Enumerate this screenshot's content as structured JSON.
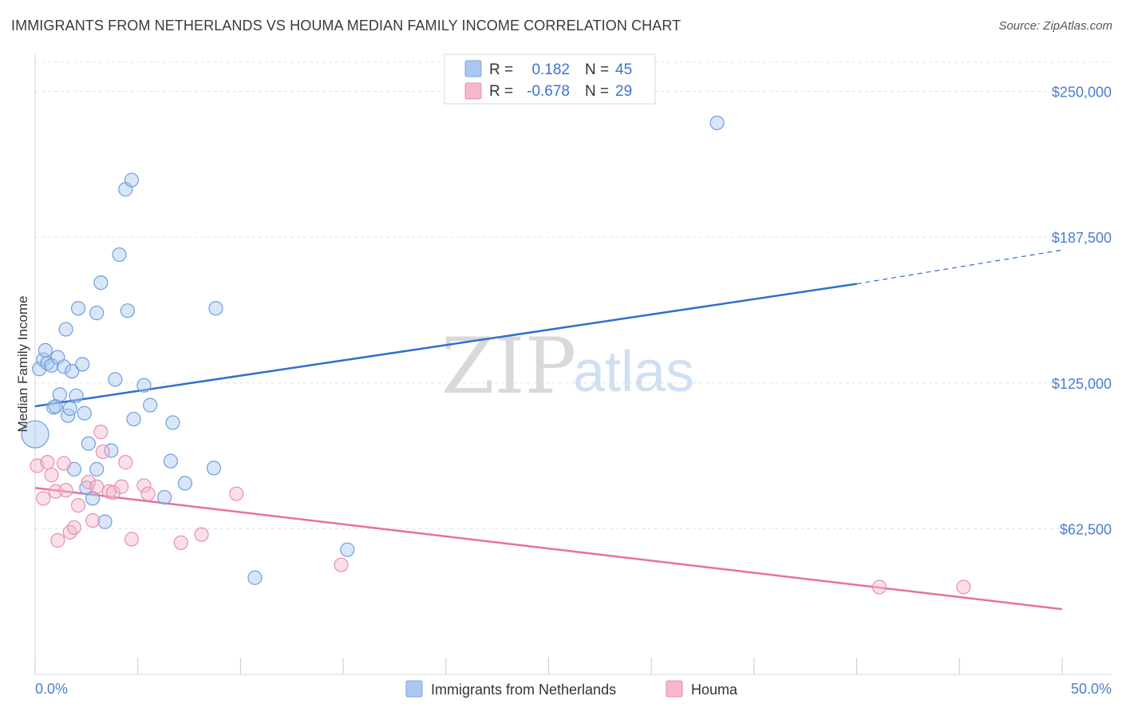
{
  "header": {
    "title": "IMMIGRANTS FROM NETHERLANDS VS HOUMA MEDIAN FAMILY INCOME CORRELATION CHART",
    "source": "Source: ZipAtlas.com"
  },
  "watermark": {
    "zip": "ZIP",
    "atlas": "atlas"
  },
  "legend": {
    "rows": [
      {
        "r_label": "R =",
        "r_value": "0.182",
        "n_label": "N =",
        "n_value": "45",
        "color": "#a9c8ef"
      },
      {
        "r_label": "R =",
        "r_value": "-0.678",
        "n_label": "N =",
        "n_value": "29",
        "color": "#f5b8cb"
      }
    ]
  },
  "colors": {
    "blue_fill": "#a9c8ef",
    "blue_line": "#2f6fd1",
    "pink_fill": "#f5b8cb",
    "pink_line": "#e8719a",
    "grid": "#dde3ea"
  },
  "chart_data": {
    "type": "scatter",
    "title": "IMMIGRANTS FROM NETHERLANDS VS HOUMA MEDIAN FAMILY INCOME CORRELATION CHART",
    "xlabel": "",
    "ylabel": "Median Family Income",
    "xlim": [
      0,
      50
    ],
    "ylim": [
      0,
      262500
    ],
    "x_tick_labels": [
      "0.0%",
      "50.0%"
    ],
    "y_ticks": [
      62500,
      125000,
      187500,
      250000
    ],
    "y_tick_labels": [
      "$62,500",
      "$125,000",
      "$187,500",
      "$250,000"
    ],
    "series": [
      {
        "name": "Immigrants from Netherlands",
        "color": "#a9c8ef",
        "trend": {
          "x0": 0,
          "y0": 115000,
          "x1": 40,
          "y1": 167500,
          "x_dash_end": 50,
          "y_dash_end": 182000
        },
        "points": [
          {
            "x": 0.0,
            "y": 103000,
            "big": true
          },
          {
            "x": 0.2,
            "y": 131000
          },
          {
            "x": 0.4,
            "y": 135000
          },
          {
            "x": 0.5,
            "y": 139000
          },
          {
            "x": 0.6,
            "y": 133500
          },
          {
            "x": 0.8,
            "y": 132500
          },
          {
            "x": 0.9,
            "y": 114500
          },
          {
            "x": 1.0,
            "y": 115000
          },
          {
            "x": 1.1,
            "y": 136000
          },
          {
            "x": 1.2,
            "y": 120000
          },
          {
            "x": 1.4,
            "y": 132000
          },
          {
            "x": 1.5,
            "y": 148000
          },
          {
            "x": 1.6,
            "y": 111000
          },
          {
            "x": 1.7,
            "y": 114000
          },
          {
            "x": 1.8,
            "y": 130000
          },
          {
            "x": 1.9,
            "y": 88000
          },
          {
            "x": 2.0,
            "y": 119500
          },
          {
            "x": 2.1,
            "y": 157000
          },
          {
            "x": 2.3,
            "y": 133000
          },
          {
            "x": 2.4,
            "y": 112000
          },
          {
            "x": 2.5,
            "y": 80000
          },
          {
            "x": 2.6,
            "y": 99000
          },
          {
            "x": 2.8,
            "y": 75500
          },
          {
            "x": 3.0,
            "y": 155000
          },
          {
            "x": 3.0,
            "y": 88000
          },
          {
            "x": 3.2,
            "y": 168000
          },
          {
            "x": 3.4,
            "y": 65500
          },
          {
            "x": 3.7,
            "y": 96000
          },
          {
            "x": 3.9,
            "y": 126500
          },
          {
            "x": 4.1,
            "y": 180000
          },
          {
            "x": 4.4,
            "y": 208000
          },
          {
            "x": 4.5,
            "y": 156000
          },
          {
            "x": 4.7,
            "y": 212000
          },
          {
            "x": 4.8,
            "y": 109500
          },
          {
            "x": 5.3,
            "y": 124000
          },
          {
            "x": 5.6,
            "y": 115500
          },
          {
            "x": 6.3,
            "y": 76000
          },
          {
            "x": 6.6,
            "y": 91500
          },
          {
            "x": 6.7,
            "y": 108000
          },
          {
            "x": 7.3,
            "y": 82000
          },
          {
            "x": 8.7,
            "y": 88500
          },
          {
            "x": 8.8,
            "y": 157000
          },
          {
            "x": 10.7,
            "y": 41500
          },
          {
            "x": 15.2,
            "y": 53500
          },
          {
            "x": 33.2,
            "y": 236500
          }
        ]
      },
      {
        "name": "Houma",
        "color": "#f5b8cb",
        "trend": {
          "x0": 0,
          "y0": 80000,
          "x1": 50,
          "y1": 28000
        },
        "points": [
          {
            "x": 0.1,
            "y": 89500
          },
          {
            "x": 0.4,
            "y": 75500
          },
          {
            "x": 0.6,
            "y": 91000
          },
          {
            "x": 0.8,
            "y": 85500
          },
          {
            "x": 1.0,
            "y": 78500
          },
          {
            "x": 1.1,
            "y": 57500
          },
          {
            "x": 1.4,
            "y": 90500
          },
          {
            "x": 1.5,
            "y": 79000
          },
          {
            "x": 1.7,
            "y": 61000
          },
          {
            "x": 1.9,
            "y": 63000
          },
          {
            "x": 2.1,
            "y": 72500
          },
          {
            "x": 2.6,
            "y": 82500
          },
          {
            "x": 2.8,
            "y": 66000
          },
          {
            "x": 3.0,
            "y": 80500
          },
          {
            "x": 3.2,
            "y": 104000
          },
          {
            "x": 3.3,
            "y": 95500
          },
          {
            "x": 3.6,
            "y": 78500
          },
          {
            "x": 3.8,
            "y": 78000
          },
          {
            "x": 4.2,
            "y": 80500
          },
          {
            "x": 4.4,
            "y": 91000
          },
          {
            "x": 4.7,
            "y": 58000
          },
          {
            "x": 5.3,
            "y": 81000
          },
          {
            "x": 5.5,
            "y": 77500
          },
          {
            "x": 7.1,
            "y": 56500
          },
          {
            "x": 8.1,
            "y": 60000
          },
          {
            "x": 9.8,
            "y": 77500
          },
          {
            "x": 14.9,
            "y": 47000
          },
          {
            "x": 41.1,
            "y": 37500
          },
          {
            "x": 45.2,
            "y": 37500
          }
        ]
      }
    ]
  }
}
